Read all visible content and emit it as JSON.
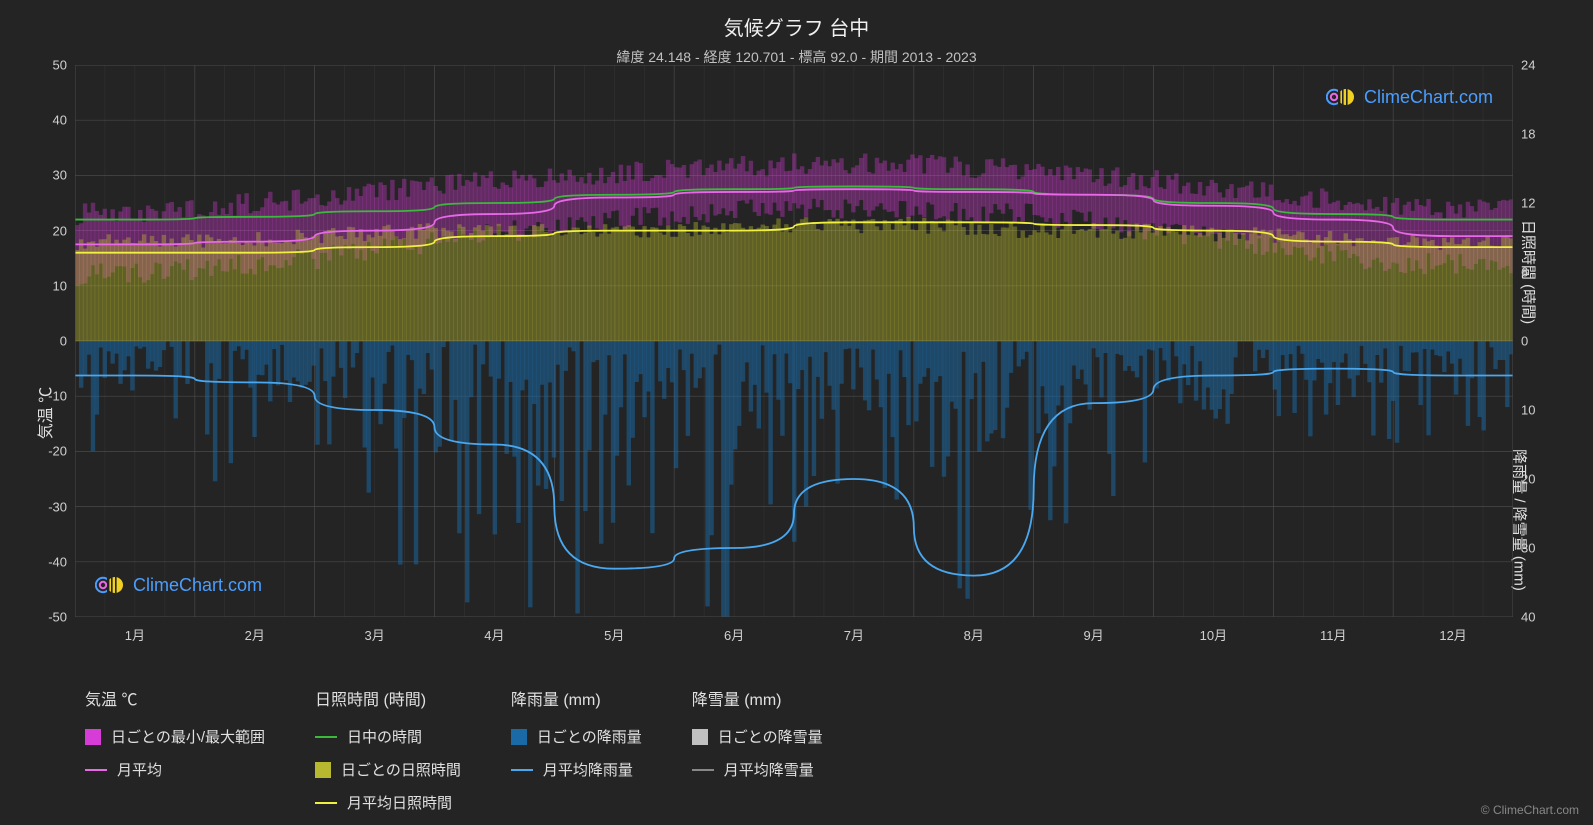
{
  "title": "気候グラフ 台中",
  "subtitle": "緯度 24.148 - 経度 120.701 - 標高 92.0 - 期間 2013 - 2023",
  "brand": "ClimeChart.com",
  "credit": "© ClimeChart.com",
  "axis_left_label": "気温 ℃",
  "axis_right_top_label": "日照時間 (時間)",
  "axis_right_bot_label": "降雨量 / 降雪量 (mm)",
  "colors": {
    "bg": "#242424",
    "grid": "#4a4a4a",
    "grid_minor": "#3a3a3a",
    "text": "#e0e0e0",
    "magenta_band": "#d63cd6",
    "magenta_line": "#e868e8",
    "green_line": "#3cb83c",
    "yellow_band": "#b8b830",
    "yellow_line": "#f0f040",
    "blue_band": "#1a6aa8",
    "blue_line": "#4aa8f0",
    "white_band": "#c0c0c0",
    "white_line": "#888888",
    "brand_blue": "#4a9eff"
  },
  "left_axis": {
    "min": -50,
    "max": 50,
    "step": 10,
    "ticks": [
      50,
      40,
      30,
      20,
      10,
      0,
      -10,
      -20,
      -30,
      -40,
      -50
    ]
  },
  "right_top_axis": {
    "min": 0,
    "max": 24,
    "step": 6,
    "ticks": [
      24,
      18,
      12,
      6,
      0
    ]
  },
  "right_bot_axis": {
    "min": 0,
    "max": 40,
    "step": 10,
    "ticks": [
      0,
      10,
      20,
      30,
      40
    ]
  },
  "months": [
    "1月",
    "2月",
    "3月",
    "4月",
    "5月",
    "6月",
    "7月",
    "8月",
    "9月",
    "10月",
    "11月",
    "12月"
  ],
  "series": {
    "temp_avg_monthly": [
      17.5,
      18,
      20,
      23,
      26,
      27,
      27.5,
      27,
      26.5,
      24.5,
      22,
      19
    ],
    "temp_daily_max": [
      23,
      24,
      26,
      28,
      30,
      31,
      32,
      32,
      31,
      29,
      27,
      24
    ],
    "temp_daily_min": [
      12,
      13,
      15,
      18,
      21,
      23,
      24,
      24,
      23,
      20,
      17,
      14
    ],
    "daytime_hours": [
      22,
      22.5,
      23.5,
      25,
      26.5,
      27.5,
      28,
      27.5,
      26.5,
      25,
      23,
      22
    ],
    "sunshine_daily_max": [
      18,
      18,
      19,
      20,
      20,
      20,
      21,
      21,
      20,
      20,
      19,
      18
    ],
    "sunshine_daily_min": [
      2,
      2,
      3,
      3,
      4,
      4,
      5,
      5,
      4,
      3,
      2,
      2
    ],
    "sunshine_monthly_avg": [
      16,
      16,
      17,
      19,
      20,
      20,
      21.5,
      21.5,
      21,
      20,
      18,
      17
    ],
    "rain_monthly_avg": [
      5,
      6,
      10,
      15,
      33,
      30,
      20,
      34,
      9,
      5,
      4,
      5
    ],
    "rain_daily_peaks": [
      18,
      20,
      28,
      35,
      40,
      40,
      38,
      40,
      32,
      22,
      16,
      18
    ]
  },
  "legend": {
    "col1_header": "気温 ℃",
    "col1_item1": "日ごとの最小/最大範囲",
    "col1_item2": "月平均",
    "col2_header": "日照時間 (時間)",
    "col2_item1": "日中の時間",
    "col2_item2": "日ごとの日照時間",
    "col2_item3": "月平均日照時間",
    "col3_header": "降雨量 (mm)",
    "col3_item1": "日ごとの降雨量",
    "col3_item2": "月平均降雨量",
    "col4_header": "降雪量 (mm)",
    "col4_item1": "日ごとの降雪量",
    "col4_item2": "月平均降雪量"
  }
}
